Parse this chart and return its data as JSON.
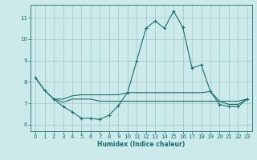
{
  "xlabel": "Humidex (Indice chaleur)",
  "bg_color": "#cceaea",
  "grid_color": "#aacccc",
  "line_color": "#1a6e6e",
  "xlim": [
    -0.5,
    23.5
  ],
  "ylim": [
    5.7,
    11.6
  ],
  "yticks": [
    6,
    7,
    8,
    9,
    10,
    11
  ],
  "xticks": [
    0,
    1,
    2,
    3,
    4,
    5,
    6,
    7,
    8,
    9,
    10,
    11,
    12,
    13,
    14,
    15,
    16,
    17,
    18,
    19,
    20,
    21,
    22,
    23
  ],
  "series_main": [
    [
      0,
      8.2
    ],
    [
      1,
      7.6
    ],
    [
      2,
      7.2
    ],
    [
      3,
      6.85
    ],
    [
      4,
      6.6
    ],
    [
      5,
      6.3
    ],
    [
      6,
      6.3
    ],
    [
      7,
      6.25
    ],
    [
      8,
      6.45
    ],
    [
      9,
      6.9
    ],
    [
      10,
      7.5
    ],
    [
      11,
      9.0
    ],
    [
      12,
      10.5
    ],
    [
      13,
      10.85
    ],
    [
      14,
      10.5
    ],
    [
      15,
      11.3
    ],
    [
      16,
      10.55
    ],
    [
      17,
      8.65
    ],
    [
      18,
      8.8
    ],
    [
      19,
      7.55
    ],
    [
      20,
      6.95
    ],
    [
      21,
      6.85
    ],
    [
      22,
      6.85
    ],
    [
      23,
      7.2
    ]
  ],
  "series_flat1": [
    [
      0,
      8.2
    ],
    [
      1,
      7.6
    ],
    [
      2,
      7.2
    ],
    [
      3,
      7.2
    ],
    [
      4,
      7.35
    ],
    [
      5,
      7.4
    ],
    [
      6,
      7.4
    ],
    [
      7,
      7.4
    ],
    [
      8,
      7.4
    ],
    [
      9,
      7.4
    ],
    [
      10,
      7.5
    ],
    [
      11,
      7.5
    ],
    [
      12,
      7.5
    ],
    [
      13,
      7.5
    ],
    [
      14,
      7.5
    ],
    [
      15,
      7.5
    ],
    [
      16,
      7.5
    ],
    [
      17,
      7.5
    ],
    [
      18,
      7.5
    ],
    [
      19,
      7.55
    ],
    [
      20,
      7.1
    ],
    [
      21,
      6.95
    ],
    [
      22,
      6.95
    ],
    [
      23,
      7.2
    ]
  ],
  "series_flat2": [
    [
      2,
      7.2
    ],
    [
      3,
      7.05
    ],
    [
      4,
      7.2
    ],
    [
      5,
      7.2
    ],
    [
      6,
      7.2
    ],
    [
      7,
      7.1
    ],
    [
      8,
      7.1
    ],
    [
      9,
      7.1
    ],
    [
      10,
      7.1
    ],
    [
      11,
      7.1
    ],
    [
      12,
      7.1
    ],
    [
      13,
      7.1
    ],
    [
      14,
      7.1
    ],
    [
      15,
      7.1
    ],
    [
      16,
      7.1
    ],
    [
      17,
      7.1
    ],
    [
      18,
      7.1
    ],
    [
      19,
      7.1
    ],
    [
      20,
      7.1
    ],
    [
      21,
      7.1
    ],
    [
      22,
      7.1
    ],
    [
      23,
      7.2
    ]
  ]
}
